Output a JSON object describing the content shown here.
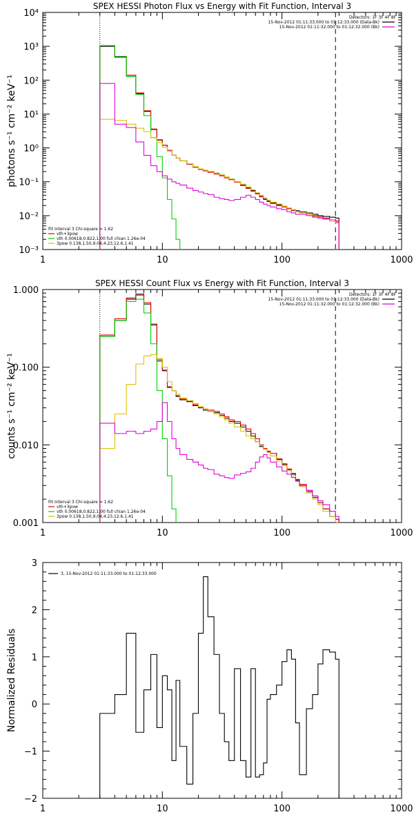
{
  "chart_data": [
    {
      "type": "line",
      "title": "SPEX HESSI Photon Flux vs Energy with Fit Function, Interval 3",
      "ylabel": "photons s⁻¹ cm⁻² keV⁻¹",
      "xlabel": "",
      "xscale": "log",
      "yscale": "log",
      "xlim": [
        1,
        1000
      ],
      "ylim": [
        0.001,
        10000
      ],
      "grid": false,
      "x_ticks": [
        "1",
        "10",
        "100",
        "1000"
      ],
      "y_ticks": [
        "10⁻³",
        "10⁻²",
        "10⁻¹",
        "10⁰",
        "10¹",
        "10²",
        "10³",
        "10⁴"
      ],
      "vlines": [
        {
          "x": 3,
          "style": "dotted"
        },
        {
          "x": 280,
          "style": "dashed"
        }
      ],
      "legend_top_right": {
        "header": "Detectors: 1F 3F 4F 8F",
        "entries": [
          {
            "label": "15-Nov-2012 01:11:33.000 to 01:12:33.000 (Data-Bk)",
            "color": "#000000"
          },
          {
            "label": "15-Nov-2012 01:11:32.000 to 01:12:32.000 (Bk)",
            "color": "#e000e0"
          }
        ]
      },
      "legend_bottom_left": {
        "header": "Fit Interval 3   Chi-square = 1.62",
        "entries": [
          {
            "label": "vth+3pow",
            "color": "#e00000"
          },
          {
            "label": "vth 0.00618,0.822,1.00   full chian 1.26e-04",
            "color": "#00d000"
          },
          {
            "label": "3pow 0.138,1.50,9.04,4.23,12.6,1.41",
            "color": "#d8c000"
          }
        ]
      },
      "series": [
        {
          "name": "Data-Bk",
          "color": "#000000",
          "x": [
            3,
            4,
            5,
            6,
            7,
            8,
            9,
            10,
            11,
            12,
            13,
            14,
            16,
            18,
            20,
            22,
            24,
            27,
            30,
            33,
            36,
            40,
            45,
            50,
            55,
            60,
            65,
            70,
            75,
            80,
            90,
            100,
            110,
            120,
            130,
            140,
            160,
            180,
            200,
            220,
            250,
            280
          ],
          "y": [
            1000,
            480,
            130,
            40,
            12,
            3.5,
            1.7,
            1.2,
            0.85,
            0.6,
            0.5,
            0.42,
            0.33,
            0.27,
            0.23,
            0.21,
            0.2,
            0.18,
            0.16,
            0.14,
            0.12,
            0.1,
            0.08,
            0.066,
            0.055,
            0.045,
            0.037,
            0.031,
            0.027,
            0.024,
            0.021,
            0.019,
            0.017,
            0.015,
            0.014,
            0.013,
            0.012,
            0.011,
            0.01,
            0.0095,
            0.009,
            0.0085
          ]
        },
        {
          "name": "vth+3pow",
          "color": "#e00000",
          "x": [
            3,
            4,
            5,
            6,
            7,
            8,
            9,
            10,
            11,
            12,
            13,
            14,
            16,
            18,
            20,
            22,
            24,
            27,
            30,
            33,
            36,
            40,
            45,
            50,
            55,
            60,
            65,
            70,
            75,
            80,
            90,
            100,
            110,
            120,
            130,
            140,
            160,
            180,
            200,
            220,
            250,
            280
          ],
          "y": [
            1050,
            500,
            140,
            42,
            12.5,
            3.6,
            1.75,
            1.2,
            0.85,
            0.61,
            0.5,
            0.42,
            0.33,
            0.27,
            0.23,
            0.21,
            0.19,
            0.17,
            0.15,
            0.13,
            0.115,
            0.097,
            0.078,
            0.064,
            0.053,
            0.044,
            0.036,
            0.03,
            0.026,
            0.023,
            0.02,
            0.018,
            0.016,
            0.014,
            0.013,
            0.012,
            0.011,
            0.01,
            0.0092,
            0.0085,
            0.0075,
            0.0065
          ]
        },
        {
          "name": "vth",
          "color": "#00d000",
          "x": [
            3,
            4,
            5,
            6,
            7,
            8,
            9,
            10,
            11,
            12,
            13,
            14
          ],
          "y": [
            1050,
            500,
            130,
            38,
            9,
            2,
            0.55,
            0.13,
            0.03,
            0.008,
            0.002,
            0.0005
          ]
        },
        {
          "name": "3pow",
          "color": "#d8c000",
          "x": [
            3,
            4,
            5,
            6,
            7,
            8,
            9,
            10,
            11,
            12,
            13,
            14,
            16,
            18,
            20,
            22,
            24,
            27,
            30,
            33,
            36,
            40,
            45,
            50,
            55,
            60,
            65,
            70,
            75,
            80,
            90,
            100,
            110,
            120,
            130,
            140,
            160,
            180,
            200,
            220,
            250,
            280
          ],
          "y": [
            7,
            6.5,
            5,
            3.8,
            3,
            2,
            1.45,
            1.05,
            0.8,
            0.6,
            0.5,
            0.42,
            0.34,
            0.28,
            0.24,
            0.22,
            0.2,
            0.18,
            0.16,
            0.14,
            0.12,
            0.1,
            0.085,
            0.07,
            0.058,
            0.048,
            0.04,
            0.034,
            0.029,
            0.025,
            0.022,
            0.019,
            0.017,
            0.015,
            0.013,
            0.012,
            0.011,
            0.0095,
            0.0085,
            0.0078,
            0.0068,
            0.006
          ]
        },
        {
          "name": "Bk",
          "color": "#e000e0",
          "x": [
            3,
            4,
            5,
            6,
            7,
            8,
            9,
            10,
            11,
            12,
            13,
            14,
            16,
            18,
            20,
            22,
            24,
            27,
            30,
            33,
            36,
            40,
            45,
            50,
            55,
            60,
            65,
            70,
            75,
            80,
            90,
            100,
            110,
            120,
            130,
            140,
            160,
            180,
            200,
            220,
            250,
            280
          ],
          "y": [
            80,
            5,
            4,
            1.5,
            0.6,
            0.3,
            0.2,
            0.15,
            0.12,
            0.1,
            0.09,
            0.08,
            0.065,
            0.055,
            0.05,
            0.045,
            0.042,
            0.035,
            0.032,
            0.03,
            0.028,
            0.03,
            0.035,
            0.04,
            0.035,
            0.03,
            0.025,
            0.022,
            0.02,
            0.018,
            0.016,
            0.015,
            0.013,
            0.012,
            0.011,
            0.011,
            0.01,
            0.009,
            0.0085,
            0.008,
            0.0075,
            0.007
          ]
        }
      ]
    },
    {
      "type": "line",
      "title": "SPEX HESSI Count Flux vs Energy with Fit Function, Interval 3",
      "ylabel": "counts s⁻¹ cm⁻² keV⁻¹",
      "xlabel": "",
      "xscale": "log",
      "yscale": "log",
      "xlim": [
        1,
        1000
      ],
      "ylim": [
        0.001,
        1.0
      ],
      "grid": false,
      "x_ticks": [
        "1",
        "10",
        "100",
        "1000"
      ],
      "y_ticks": [
        "0.001",
        "0.010",
        "0.100",
        "1.000"
      ],
      "vlines": [
        {
          "x": 3,
          "style": "dotted"
        },
        {
          "x": 280,
          "style": "dashed"
        }
      ],
      "legend_top_right": {
        "header": "Detectors: 1F 3F 4F 8F",
        "entries": [
          {
            "label": "15-Nov-2012 01:11:33.000 to 01:12:33.000 (Data-Bk)",
            "color": "#000000"
          },
          {
            "label": "15-Nov-2012 01:11:32.000 to 01:12:32.000 (Bk)",
            "color": "#e000e0"
          }
        ]
      },
      "legend_bottom_left": {
        "header": "Fit Interval 3   Chi-square = 1.62",
        "entries": [
          {
            "label": "vth+3pow",
            "color": "#e00000"
          },
          {
            "label": "vth 0.00618,0.822,1.00   full chian 1.26e-04",
            "color": "#00d000"
          },
          {
            "label": "3pow 0.138,1.50,9.04,4.23,12.6,1.41",
            "color": "#d8c000"
          }
        ]
      },
      "series": [
        {
          "name": "Data-Bk",
          "color": "#000000",
          "x": [
            3,
            4,
            5,
            6,
            7,
            8,
            9,
            10,
            11,
            12,
            13,
            14,
            16,
            18,
            20,
            22,
            24,
            27,
            30,
            33,
            36,
            40,
            45,
            50,
            55,
            60,
            65,
            70,
            75,
            80,
            90,
            100,
            110,
            120,
            130,
            140,
            160,
            180,
            200,
            220,
            250,
            280
          ],
          "y": [
            0.25,
            0.4,
            0.75,
            0.85,
            0.65,
            0.35,
            0.12,
            0.09,
            0.055,
            0.05,
            0.042,
            0.038,
            0.036,
            0.032,
            0.03,
            0.028,
            0.027,
            0.026,
            0.024,
            0.022,
            0.02,
            0.019,
            0.017,
            0.015,
            0.013,
            0.011,
            0.0095,
            0.0088,
            0.0082,
            0.0078,
            0.0065,
            0.0056,
            0.0048,
            0.0042,
            0.0035,
            0.003,
            0.0025,
            0.0021,
            0.0018,
            0.0015,
            0.0012,
            0.0011
          ]
        },
        {
          "name": "vth+3pow",
          "color": "#e00000",
          "x": [
            3,
            4,
            5,
            6,
            7,
            8,
            9,
            10,
            11,
            12,
            13,
            14,
            16,
            18,
            20,
            22,
            24,
            27,
            30,
            33,
            36,
            40,
            45,
            50,
            55,
            60,
            65,
            70,
            75,
            80,
            90,
            100,
            110,
            120,
            130,
            140,
            160,
            180,
            200,
            220,
            250,
            280
          ],
          "y": [
            0.26,
            0.42,
            0.78,
            0.88,
            0.68,
            0.36,
            0.125,
            0.092,
            0.056,
            0.05,
            0.043,
            0.039,
            0.037,
            0.033,
            0.031,
            0.029,
            0.028,
            0.027,
            0.025,
            0.023,
            0.021,
            0.02,
            0.018,
            0.016,
            0.014,
            0.012,
            0.01,
            0.009,
            0.0083,
            0.0078,
            0.0066,
            0.0057,
            0.0049,
            0.0043,
            0.0036,
            0.0031,
            0.0026,
            0.0022,
            0.0018,
            0.0015,
            0.0012,
            0.0011
          ]
        },
        {
          "name": "vth",
          "color": "#00d000",
          "x": [
            3,
            4,
            5,
            6,
            7,
            8,
            9,
            10,
            11,
            12,
            13
          ],
          "y": [
            0.25,
            0.4,
            0.7,
            0.75,
            0.5,
            0.2,
            0.05,
            0.012,
            0.004,
            0.0015,
            0.0008
          ]
        },
        {
          "name": "3pow",
          "color": "#d8c000",
          "x": [
            3,
            4,
            5,
            6,
            7,
            8,
            9,
            10,
            11,
            12,
            13,
            14,
            16,
            18,
            20,
            22,
            24,
            27,
            30,
            33,
            36,
            40,
            45,
            50,
            55,
            60,
            65,
            70,
            75,
            80,
            90,
            100,
            110,
            120,
            130,
            140,
            160,
            180,
            200,
            220,
            250,
            280
          ],
          "y": [
            0.009,
            0.025,
            0.06,
            0.11,
            0.14,
            0.145,
            0.13,
            0.1,
            0.065,
            0.05,
            0.045,
            0.04,
            0.037,
            0.034,
            0.031,
            0.029,
            0.027,
            0.025,
            0.023,
            0.021,
            0.019,
            0.017,
            0.015,
            0.013,
            0.012,
            0.011,
            0.0098,
            0.0088,
            0.008,
            0.0072,
            0.0062,
            0.0054,
            0.0047,
            0.004,
            0.0034,
            0.0029,
            0.0024,
            0.002,
            0.0017,
            0.0014,
            0.0012,
            0.001
          ]
        },
        {
          "name": "Bk",
          "color": "#e000e0",
          "x": [
            3,
            4,
            5,
            6,
            7,
            8,
            9,
            10,
            11,
            12,
            13,
            14,
            16,
            18,
            20,
            22,
            24,
            27,
            30,
            33,
            36,
            40,
            45,
            50,
            55,
            60,
            65,
            70,
            75,
            80,
            90,
            100,
            110,
            120,
            130,
            140,
            160,
            180,
            200,
            220,
            250,
            280
          ],
          "y": [
            0.019,
            0.014,
            0.015,
            0.014,
            0.015,
            0.016,
            0.02,
            0.035,
            0.02,
            0.012,
            0.009,
            0.0075,
            0.0065,
            0.006,
            0.0055,
            0.005,
            0.0048,
            0.0042,
            0.004,
            0.0038,
            0.0037,
            0.0041,
            0.0043,
            0.0045,
            0.005,
            0.006,
            0.007,
            0.0075,
            0.0068,
            0.006,
            0.0052,
            0.0046,
            0.0042,
            0.0038,
            0.0034,
            0.003,
            0.0026,
            0.0022,
            0.0019,
            0.0017,
            0.0014,
            0.0012
          ]
        }
      ]
    },
    {
      "type": "line",
      "title": "",
      "ylabel": "Normalized Residuals",
      "xlabel": "",
      "xscale": "log",
      "yscale": "linear",
      "xlim": [
        1,
        1000
      ],
      "ylim": [
        -2,
        3
      ],
      "grid": false,
      "x_ticks": [
        "1",
        "10",
        "100",
        "1000"
      ],
      "y_ticks": [
        "−2",
        "−1",
        "0",
        "1",
        "2",
        "3"
      ],
      "legend_top_left": {
        "entries": [
          {
            "label": "3, 15-Nov-2012 01:11:33.000 to 01:12:33.000",
            "color": "#000000"
          }
        ]
      },
      "series": [
        {
          "name": "3, 15-Nov-2012 01:11:33.000 to 01:12:33.000",
          "color": "#000000",
          "x": [
            3,
            4,
            5,
            6,
            7,
            8,
            9,
            10,
            11,
            12,
            13,
            14,
            16,
            18,
            20,
            22,
            24,
            27,
            30,
            33,
            36,
            40,
            45,
            50,
            55,
            60,
            65,
            70,
            75,
            80,
            90,
            100,
            110,
            120,
            130,
            140,
            160,
            180,
            200,
            220,
            250,
            280
          ],
          "y": [
            -0.2,
            0.2,
            1.5,
            -0.6,
            0.3,
            1.05,
            -0.5,
            0.6,
            0.3,
            -1.2,
            0.5,
            -0.9,
            -1.7,
            -0.2,
            1.5,
            2.7,
            1.85,
            1.05,
            -0.2,
            -0.8,
            -1.2,
            0.75,
            -1.2,
            -1.55,
            0.75,
            -1.55,
            -1.5,
            -1.25,
            0.1,
            0.2,
            0.4,
            0.9,
            1.15,
            0.95,
            -0.4,
            -1.5,
            -0.1,
            0.2,
            0.85,
            1.15,
            1.1,
            0.95
          ]
        }
      ]
    }
  ]
}
